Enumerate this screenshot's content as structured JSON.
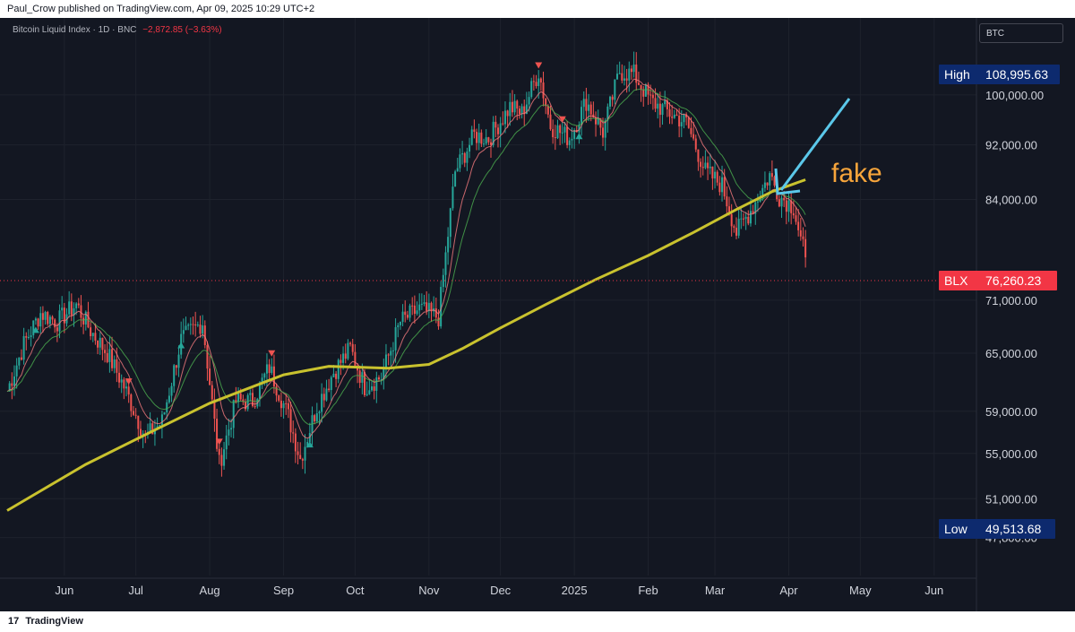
{
  "header": {
    "publish_line": "Paul_Crow published on TradingView.com, Apr 09, 2025 10:29 UTC+2"
  },
  "legend": {
    "title": "Bitcoin Liquid Index · 1D · BNC",
    "change": "−2,872.85 (−3.63%)"
  },
  "symbol_box": "BTC",
  "footer": {
    "brand": "TradingView",
    "logo": "17"
  },
  "colors": {
    "up": "#26a69a",
    "down": "#ef5350",
    "ma_long": "#c9c22e",
    "ema_fast": "#f77c80",
    "ema_slow": "#4caf50",
    "arrow": "#5bc8ea",
    "annotation": "#f7a53b",
    "label_bg": "#0d2a6e",
    "price_label_bg": "#f23645"
  },
  "chart_data": {
    "type": "line",
    "title": "Bitcoin Liquid Index · 1D · BNC",
    "y_axis": {
      "scale": "log",
      "ticks": [
        "47,800.00",
        "51,000.00",
        "55,000.00",
        "59,000.00",
        "65,000.00",
        "71,000.00",
        "84,000.00",
        "92,000.00",
        "100,000.00"
      ],
      "tick_values": [
        47800,
        51000,
        55000,
        59000,
        65000,
        71000,
        84000,
        92000,
        100000
      ],
      "range": [
        45000,
        112000
      ]
    },
    "x_axis": {
      "ticks": [
        "Jun",
        "Jul",
        "Aug",
        "Sep",
        "Oct",
        "Nov",
        "Dec",
        "2025",
        "Feb",
        "Mar",
        "Apr",
        "May",
        "Jun"
      ],
      "tick_dates": [
        "2024-06-01",
        "2024-07-01",
        "2024-08-01",
        "2024-09-01",
        "2024-10-01",
        "2024-11-01",
        "2024-12-01",
        "2025-01-01",
        "2025-02-01",
        "2025-03-01",
        "2025-04-01",
        "2025-05-01",
        "2025-06-01"
      ],
      "range": [
        "2024-05-08",
        "2025-06-18"
      ]
    },
    "price_series": {
      "name": "BLX",
      "points": [
        [
          "2024-05-08",
          61000
        ],
        [
          "2024-05-15",
          66000
        ],
        [
          "2024-05-22",
          69500
        ],
        [
          "2024-05-29",
          68500
        ],
        [
          "2024-06-06",
          70500
        ],
        [
          "2024-06-12",
          67500
        ],
        [
          "2024-06-19",
          65000
        ],
        [
          "2024-06-26",
          61500
        ],
        [
          "2024-07-05",
          56500
        ],
        [
          "2024-07-12",
          58000
        ],
        [
          "2024-07-20",
          66500
        ],
        [
          "2024-07-29",
          68500
        ],
        [
          "2024-08-05",
          54000
        ],
        [
          "2024-08-12",
          60000
        ],
        [
          "2024-08-19",
          60000
        ],
        [
          "2024-08-26",
          63500
        ],
        [
          "2024-09-03",
          58500
        ],
        [
          "2024-09-08",
          54500
        ],
        [
          "2024-09-15",
          59500
        ],
        [
          "2024-09-22",
          63000
        ],
        [
          "2024-09-29",
          65500
        ],
        [
          "2024-10-05",
          61500
        ],
        [
          "2024-10-12",
          62500
        ],
        [
          "2024-10-20",
          68500
        ],
        [
          "2024-10-28",
          70000
        ],
        [
          "2024-11-05",
          69000
        ],
        [
          "2024-11-08",
          76500
        ],
        [
          "2024-11-12",
          88000
        ],
        [
          "2024-11-20",
          93500
        ],
        [
          "2024-11-26",
          93000
        ],
        [
          "2024-12-05",
          98000
        ],
        [
          "2024-12-10",
          97000
        ],
        [
          "2024-12-17",
          104000
        ],
        [
          "2024-12-22",
          95000
        ],
        [
          "2024-12-30",
          93000
        ],
        [
          "2025-01-06",
          99000
        ],
        [
          "2025-01-13",
          94000
        ],
        [
          "2025-01-20",
          104000
        ],
        [
          "2025-01-26",
          103500
        ],
        [
          "2025-02-02",
          99000
        ],
        [
          "2025-02-10",
          97000
        ],
        [
          "2025-02-17",
          95500
        ],
        [
          "2025-02-25",
          88000
        ],
        [
          "2025-03-04",
          86000
        ],
        [
          "2025-03-10",
          79500
        ],
        [
          "2025-03-17",
          83000
        ],
        [
          "2025-03-24",
          87500
        ],
        [
          "2025-03-28",
          84500
        ],
        [
          "2025-04-03",
          83000
        ],
        [
          "2025-04-06",
          78500
        ],
        [
          "2025-04-08",
          76260
        ]
      ]
    },
    "ma_long": {
      "points": [
        [
          "2024-05-08",
          50000
        ],
        [
          "2024-06-10",
          54000
        ],
        [
          "2024-07-10",
          57300
        ],
        [
          "2024-08-01",
          59800
        ],
        [
          "2024-09-01",
          62700
        ],
        [
          "2024-09-20",
          63600
        ],
        [
          "2024-10-15",
          63400
        ],
        [
          "2024-11-01",
          63800
        ],
        [
          "2024-11-15",
          65500
        ],
        [
          "2024-12-01",
          67800
        ],
        [
          "2024-12-20",
          70500
        ],
        [
          "2025-01-10",
          73500
        ],
        [
          "2025-02-01",
          76500
        ],
        [
          "2025-02-20",
          79500
        ],
        [
          "2025-03-10",
          82600
        ],
        [
          "2025-03-25",
          85100
        ],
        [
          "2025-04-08",
          86800
        ]
      ]
    },
    "high_label": {
      "label": "High",
      "value": "108,995.63",
      "price": 108995.63
    },
    "low_label": {
      "label": "Low",
      "value": "49,513.68",
      "price": 49513.68
    },
    "last_price_label": {
      "label": "BLX",
      "value": "76,260.23",
      "price": 76260.23
    },
    "annotation": {
      "text": "fake"
    }
  }
}
